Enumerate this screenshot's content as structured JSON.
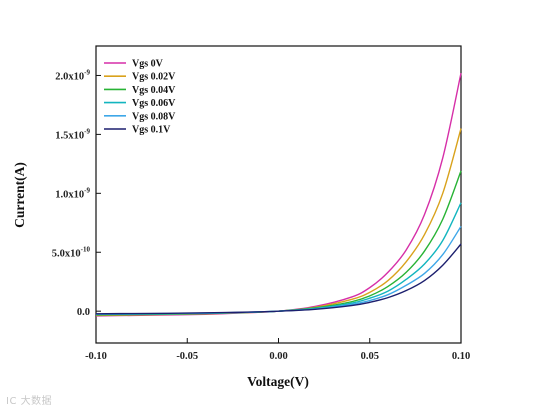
{
  "chart_data": {
    "type": "line",
    "xlabel": "Voltage(V)",
    "ylabel": "Current(A)",
    "xlim": [
      -0.1,
      0.1
    ],
    "ylim": [
      -2.7e-10,
      2.25e-09
    ],
    "x_ticks": [
      -0.1,
      -0.05,
      0.0,
      0.05,
      0.1
    ],
    "x_tick_labels": [
      "-0.10",
      "-0.05",
      "0.00",
      "0.05",
      "0.10"
    ],
    "y_ticks": [
      {
        "value": 0,
        "mantissa": "0.0",
        "exponent": ""
      },
      {
        "value": 5e-10,
        "mantissa": "5.0x10",
        "exponent": "-10"
      },
      {
        "value": 1e-09,
        "mantissa": "1.0x10",
        "exponent": "-9"
      },
      {
        "value": 1.5e-09,
        "mantissa": "1.5x10",
        "exponent": "-9"
      },
      {
        "value": 2e-09,
        "mantissa": "2.0x10",
        "exponent": "-9"
      }
    ],
    "legend_position": "top-left",
    "grid": false,
    "x": [
      -0.1,
      -0.08,
      -0.06,
      -0.04,
      -0.02,
      0.0,
      0.02,
      0.04,
      0.05,
      0.06,
      0.07,
      0.08,
      0.09,
      0.1
    ],
    "series": [
      {
        "name": "Vgs 0V",
        "color": "#d62fa8",
        "values": [
          -4e-11,
          -3.6e-11,
          -3.2e-11,
          -2.6e-11,
          -1.5e-11,
          0,
          4e-11,
          1.2e-10,
          2e-10,
          3.3e-10,
          5.2e-10,
          8.2e-10,
          1.3e-09,
          2.02e-09
        ]
      },
      {
        "name": "Vgs 0.02V",
        "color": "#d9a21c",
        "values": [
          -3.6e-11,
          -3.2e-11,
          -2.8e-11,
          -2.2e-11,
          -1.3e-11,
          0,
          3.3e-11,
          1e-10,
          1.6e-10,
          2.6e-10,
          4.2e-10,
          6.5e-10,
          1e-09,
          1.55e-09
        ]
      },
      {
        "name": "Vgs 0.04V",
        "color": "#28b335",
        "values": [
          -3.2e-11,
          -2.9e-11,
          -2.5e-11,
          -2e-11,
          -1.2e-11,
          0,
          2.8e-11,
          8e-11,
          1.3e-10,
          2.1e-10,
          3.3e-10,
          5.1e-10,
          7.8e-10,
          1.19e-09
        ]
      },
      {
        "name": "Vgs 0.06V",
        "color": "#12b5bf",
        "values": [
          -2.8e-11,
          -2.5e-11,
          -2.2e-11,
          -1.8e-11,
          -1.1e-11,
          0,
          2.3e-11,
          6.8e-11,
          1.1e-10,
          1.7e-10,
          2.7e-10,
          4e-10,
          6e-10,
          9.2e-10
        ]
      },
      {
        "name": "Vgs 0.08V",
        "color": "#3ea7e8",
        "values": [
          -2.5e-11,
          -2.2e-11,
          -2e-11,
          -1.6e-11,
          -1e-11,
          0,
          1.9e-11,
          5.7e-11,
          9e-11,
          1.4e-10,
          2.2e-10,
          3.2e-10,
          4.8e-10,
          7.2e-10
        ]
      },
      {
        "name": "Vgs 0.1V",
        "color": "#1c1f6e",
        "values": [
          -2.2e-11,
          -2e-11,
          -1.8e-11,
          -1.4e-11,
          -9e-12,
          0,
          1.6e-11,
          4.8e-11,
          7.5e-11,
          1.15e-10,
          1.75e-10,
          2.6e-10,
          3.9e-10,
          5.7e-10
        ]
      }
    ]
  },
  "watermark": "IC 大数据"
}
